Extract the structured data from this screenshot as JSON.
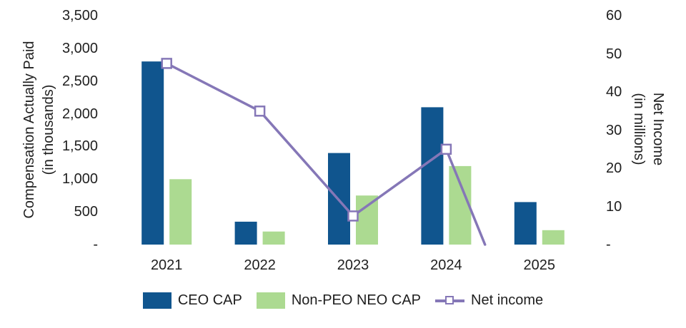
{
  "chart_data": {
    "type": "combo-bar-line",
    "categories": [
      "2021",
      "2022",
      "2023",
      "2024",
      "2025"
    ],
    "bar_series": [
      {
        "name": "CEO CAP",
        "axis": "left",
        "color": "#10558E",
        "values": [
          2800,
          350,
          1400,
          2100,
          650
        ]
      },
      {
        "name": "Non-PEO NEO CAP",
        "axis": "left",
        "color": "#ACDA91",
        "values": [
          1000,
          200,
          750,
          1200,
          220
        ]
      }
    ],
    "line_series": {
      "name": "Net income",
      "axis": "right",
      "color": "#8577B7",
      "marker": "open-square",
      "marker_fill": "#FFFFFF",
      "values": [
        47.5,
        35,
        7.5,
        25,
        -35
      ],
      "note": "2025 point falls below the axis minimum; the line is clipped at the baseline between 2024 and 2025 and no marker is shown"
    },
    "left_axis": {
      "title_line1": "Compensation Actually Paid",
      "title_line2": "(in thousands)",
      "min": 0,
      "max": 3500,
      "step": 500,
      "tick_labels": [
        "3,500",
        "3,000",
        "2,500",
        "2,000",
        "1,500",
        "1,000",
        "500",
        "-"
      ]
    },
    "right_axis": {
      "title_line1": "Net Income",
      "title_line2": "(in millions)",
      "min": 0,
      "max": 60,
      "step": 10,
      "tick_labels": [
        "60",
        "50",
        "40",
        "30",
        "20",
        "10",
        "-"
      ]
    },
    "legend": {
      "position": "bottom-center",
      "items": [
        {
          "label": "CEO CAP",
          "swatch": "bar",
          "color": "#10558E"
        },
        {
          "label": "Non-PEO NEO CAP",
          "swatch": "bar",
          "color": "#ACDA91"
        },
        {
          "label": "Net income",
          "swatch": "line-marker",
          "color": "#8577B7"
        }
      ]
    },
    "grid": false,
    "background": "#FFFFFF",
    "text_color": "#1F1F1F"
  }
}
